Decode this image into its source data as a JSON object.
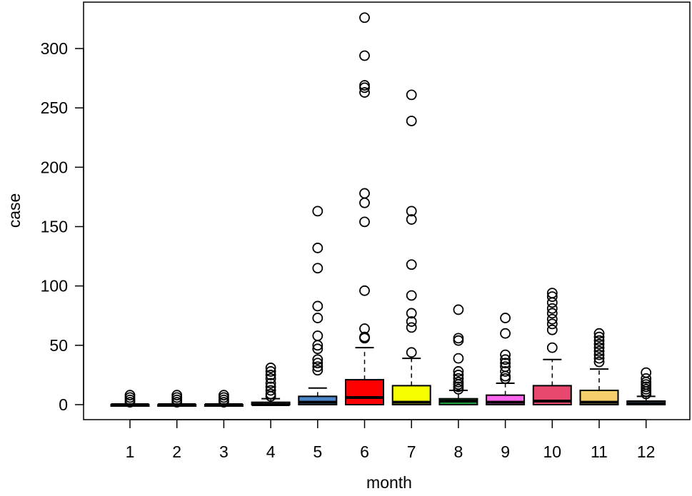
{
  "chart_data": {
    "type": "boxplot",
    "title": "",
    "xlabel": "month",
    "ylabel": "case",
    "ylim": [
      0,
      330
    ],
    "yticks": [
      0,
      50,
      100,
      150,
      200,
      250,
      300
    ],
    "categories": [
      "1",
      "2",
      "3",
      "4",
      "5",
      "6",
      "7",
      "8",
      "9",
      "10",
      "11",
      "12"
    ],
    "boxes": [
      {
        "q1": 0,
        "median": 0,
        "q3": 0,
        "whisker_low": 0,
        "whisker_high": 0,
        "color": "#555555",
        "outliers": [
          2,
          4,
          6,
          8
        ]
      },
      {
        "q1": 0,
        "median": 0,
        "q3": 0,
        "whisker_low": 0,
        "whisker_high": 0,
        "color": "#555555",
        "outliers": [
          2,
          4,
          6,
          8
        ]
      },
      {
        "q1": 0,
        "median": 0,
        "q3": 0,
        "whisker_low": 0,
        "whisker_high": 0,
        "color": "#555555",
        "outliers": [
          2,
          4,
          6,
          8
        ]
      },
      {
        "q1": 0,
        "median": 0,
        "q3": 2,
        "whisker_low": 0,
        "whisker_high": 5,
        "color": "#555555",
        "outliers": [
          7,
          9,
          12,
          15,
          18,
          22,
          25,
          28,
          31
        ]
      },
      {
        "q1": 0,
        "median": 2,
        "q3": 7,
        "whisker_low": 0,
        "whisker_high": 14,
        "color": "#4a86c8",
        "outliers": [
          29,
          32,
          35,
          38,
          47,
          50,
          58,
          73,
          83,
          115,
          132,
          163
        ]
      },
      {
        "q1": 0,
        "median": 6,
        "q3": 21,
        "whisker_low": 0,
        "whisker_high": 48,
        "color": "#ff0000",
        "outliers": [
          56,
          57,
          64,
          96,
          154,
          170,
          178,
          263,
          267,
          269,
          294,
          326
        ]
      },
      {
        "q1": 0,
        "median": 2,
        "q3": 16,
        "whisker_low": 0,
        "whisker_high": 39,
        "color": "#f5ff00",
        "outliers": [
          44,
          65,
          70,
          77,
          92,
          118,
          156,
          163,
          239,
          261
        ]
      },
      {
        "q1": 0,
        "median": 3,
        "q3": 5,
        "whisker_low": 0,
        "whisker_high": 12,
        "color": "#1f9a3a",
        "outliers": [
          13,
          15,
          17,
          19,
          22,
          25,
          28,
          39,
          54,
          56,
          80
        ]
      },
      {
        "q1": 0,
        "median": 2,
        "q3": 8,
        "whisker_low": 0,
        "whisker_high": 18,
        "color": "#ff66ee",
        "outliers": [
          22,
          24,
          28,
          32,
          35,
          38,
          42,
          60,
          73
        ]
      },
      {
        "q1": 0,
        "median": 3,
        "q3": 16,
        "whisker_low": 0,
        "whisker_high": 38,
        "color": "#e8486e",
        "outliers": [
          48,
          63,
          68,
          72,
          77,
          81,
          86,
          91,
          94
        ]
      },
      {
        "q1": 0,
        "median": 2,
        "q3": 12,
        "whisker_low": 0,
        "whisker_high": 30,
        "color": "#f5d06a",
        "outliers": [
          36,
          39,
          42,
          45,
          48,
          51,
          54,
          57,
          60
        ]
      },
      {
        "q1": 0,
        "median": 1,
        "q3": 3,
        "whisker_low": 0,
        "whisker_high": 7,
        "color": "#4a86c8",
        "outliers": [
          9,
          11,
          13,
          15,
          17,
          19,
          22,
          27
        ]
      }
    ]
  }
}
